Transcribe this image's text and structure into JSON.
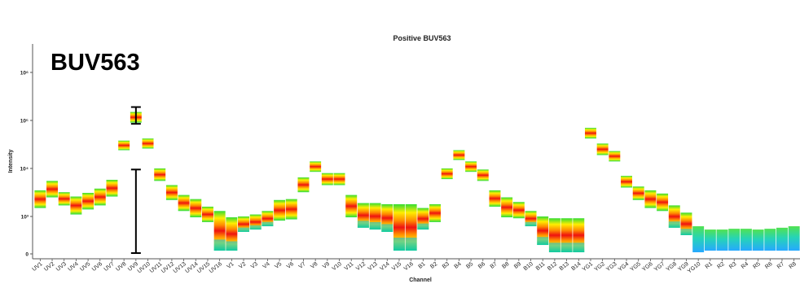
{
  "overlay_label": "BUV563",
  "chart_data": {
    "type": "heatmap",
    "title": "Positive BUV563",
    "xlabel": "Channel",
    "ylabel": "Intensity",
    "y_scale": "log",
    "y_tick_labels": [
      "10⁶",
      "10⁵",
      "10⁴",
      "10³",
      "0"
    ],
    "y_tick_values": [
      1000000,
      100000,
      10000,
      1000,
      0
    ],
    "categories": [
      "UV1",
      "UV2",
      "UV3",
      "UV4",
      "UV5",
      "UV6",
      "UV7",
      "UV8",
      "UV9",
      "UV10",
      "UV11",
      "UV12",
      "UV13",
      "UV14",
      "UV15",
      "UV16",
      "V1",
      "V2",
      "V3",
      "V4",
      "V5",
      "V6",
      "V7",
      "V8",
      "V9",
      "V10",
      "V11",
      "V12",
      "V13",
      "V14",
      "V15",
      "V16",
      "B1",
      "B2",
      "B3",
      "B4",
      "B5",
      "B6",
      "B7",
      "B8",
      "B9",
      "B10",
      "B11",
      "B12",
      "B13",
      "B14",
      "YG1",
      "YG2",
      "YG3",
      "YG4",
      "YG5",
      "YG6",
      "YG7",
      "YG8",
      "YG9",
      "YG10",
      "R1",
      "R2",
      "R3",
      "R4",
      "R5",
      "R6",
      "R7",
      "R8"
    ],
    "median_intensity": [
      2500,
      4000,
      2300,
      1800,
      2200,
      2700,
      4000,
      30000,
      120000,
      32000,
      7500,
      3300,
      2000,
      1500,
      1000,
      600,
      380,
      500,
      600,
      750,
      1300,
      1500,
      4500,
      11000,
      6500,
      6000,
      1800,
      900,
      800,
      650,
      450,
      400,
      750,
      1000,
      8000,
      19000,
      11000,
      7500,
      2500,
      1700,
      1300,
      700,
      450,
      350,
      300,
      280,
      55000,
      26000,
      18000,
      5500,
      3200,
      2500,
      2100,
      900,
      600,
      50,
      40,
      40,
      38,
      38,
      38,
      38,
      38,
      40
    ],
    "low_intensity": [
      1500,
      2500,
      1700,
      1100,
      1400,
      1700,
      2600,
      24000,
      90000,
      26000,
      5500,
      2200,
      1300,
      900,
      500,
      10,
      10,
      150,
      200,
      300,
      600,
      700,
      3200,
      8500,
      4500,
      4500,
      900,
      250,
      200,
      150,
      10,
      10,
      200,
      500,
      6000,
      15000,
      8500,
      5500,
      1600,
      900,
      800,
      300,
      30,
      5,
      5,
      5,
      42000,
      19000,
      14000,
      4000,
      2200,
      1500,
      1300,
      250,
      100,
      5,
      10,
      10,
      10,
      10,
      10,
      10,
      10,
      10
    ],
    "high_intensity": [
      3500,
      5500,
      3200,
      2600,
      3100,
      3800,
      5800,
      38000,
      150000,
      42000,
      10000,
      4500,
      2800,
      2300,
      1600,
      1300,
      900,
      1000,
      1100,
      1300,
      2200,
      2300,
      6500,
      14000,
      8000,
      8000,
      2800,
      1900,
      1900,
      1800,
      1800,
      1800,
      1500,
      1800,
      10000,
      24000,
      14000,
      9500,
      3500,
      2500,
      2000,
      1300,
      1000,
      800,
      800,
      800,
      70000,
      33000,
      23000,
      7000,
      4200,
      3500,
      3000,
      1700,
      1200,
      300,
      200,
      200,
      220,
      220,
      200,
      220,
      250,
      300
    ],
    "error_bars": [
      {
        "channel": "UV9",
        "low": 85000,
        "high": 190000
      },
      {
        "channel": "UV9",
        "low": 0,
        "high": 9500
      }
    ]
  }
}
